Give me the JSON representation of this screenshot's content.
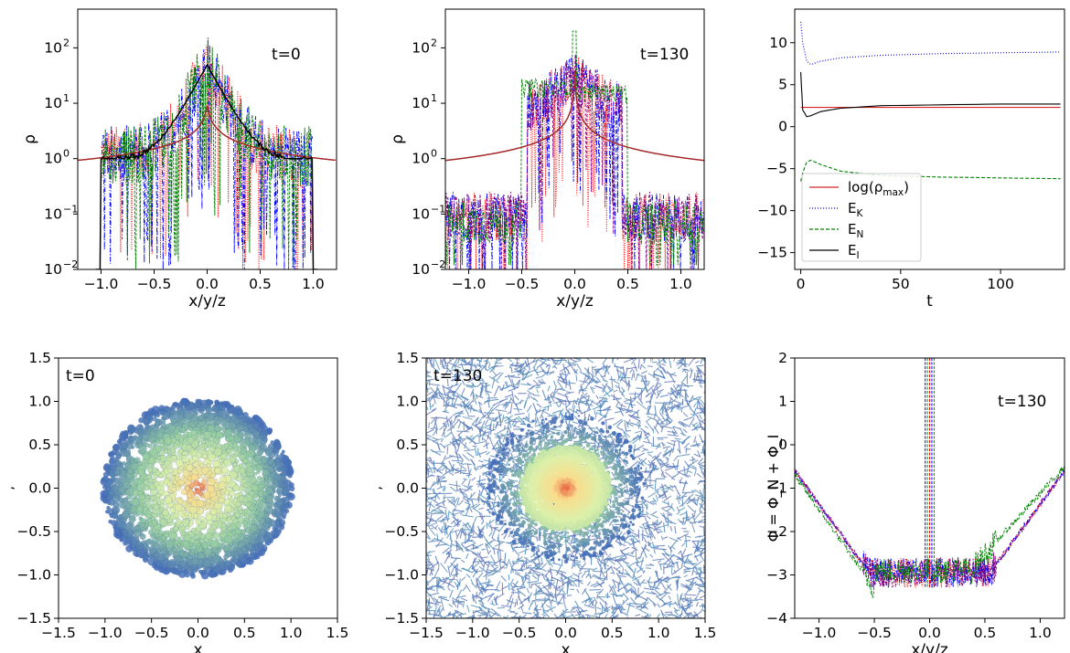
{
  "figure": {
    "panels": [
      {
        "id": "p1",
        "type": "line",
        "annotation": "t=0",
        "xlabel": "x/y/z",
        "ylabel": "ρ",
        "yscale": "log",
        "xlim": [
          -1.22,
          1.22
        ],
        "ylim": [
          0.01,
          500
        ],
        "xticks": [
          -1.0,
          -0.5,
          0.0,
          0.5,
          1.0
        ],
        "xticklabels": [
          "−1.0",
          "−0.5",
          "0.0",
          "0.5",
          "1.0"
        ],
        "yticks": [
          0.01,
          0.1,
          1,
          10,
          100
        ],
        "yticklabels": [
          "10",
          "10",
          "10",
          "10",
          "10"
        ],
        "ytickexp": [
          "−2",
          "−1",
          "0",
          "1",
          "2"
        ]
      },
      {
        "id": "p2",
        "type": "line",
        "annotation": "t=130",
        "xlabel": "x/y/z",
        "ylabel": "ρ",
        "yscale": "log",
        "xlim": [
          -1.22,
          1.22
        ],
        "ylim": [
          0.01,
          500
        ],
        "xticks": [
          -1.0,
          -0.5,
          0.0,
          0.5,
          1.0
        ],
        "xticklabels": [
          "−1.0",
          "−0.5",
          "0.0",
          "0.5",
          "1.0"
        ],
        "yticks": [
          0.01,
          0.1,
          1,
          10,
          100
        ],
        "yticklabels": [
          "10",
          "10",
          "10",
          "10",
          "10"
        ],
        "ytickexp": [
          "−2",
          "−1",
          "0",
          "1",
          "2"
        ]
      },
      {
        "id": "p3",
        "type": "line",
        "xlabel": "t",
        "ylabel": "",
        "xlim": [
          -3,
          132
        ],
        "ylim": [
          -17,
          14
        ],
        "xticks": [
          0,
          50,
          100
        ],
        "xticklabels": [
          "0",
          "50",
          "100"
        ],
        "yticks": [
          10,
          5,
          0,
          -5,
          -10,
          -15
        ],
        "yticklabels": [
          "10",
          "5",
          "0",
          "−5",
          "−10",
          "−15"
        ],
        "legend": {
          "position": "lower-left",
          "entries": [
            {
              "label": "log(ρ",
              "sub": "max",
              "suffix": ")",
              "color": "#d62728",
              "dash": ""
            },
            {
              "label": "E",
              "sub": "K",
              "suffix": "",
              "color": "#0000ff",
              "dash": "1,2"
            },
            {
              "label": "E",
              "sub": "N",
              "suffix": "",
              "color": "#008000",
              "dash": "4,2"
            },
            {
              "label": "E",
              "sub": "I",
              "suffix": "",
              "color": "#000000",
              "dash": ""
            }
          ]
        }
      },
      {
        "id": "p4",
        "type": "scatter",
        "annotation": "t=0",
        "xlabel": "x",
        "ylabel": "‚",
        "xlim": [
          -1.5,
          1.5
        ],
        "ylim": [
          -1.5,
          1.5
        ],
        "xticks": [
          -1.5,
          -1.0,
          -0.5,
          0.0,
          0.5,
          1.0,
          1.5
        ],
        "xticklabels": [
          "−1.5",
          "−1.0",
          "−0.5",
          "0.0",
          "0.5",
          "1.0",
          "1.5"
        ],
        "yticks": [
          1.5,
          1.0,
          0.5,
          0.0,
          -0.5,
          -1.0,
          -1.5
        ],
        "yticklabels": [
          "1.5",
          "1.0",
          "0.5",
          "0.0",
          "−0.5",
          "−1.0",
          "−1.5"
        ]
      },
      {
        "id": "p5",
        "type": "scatter",
        "annotation": "t=130",
        "xlabel": "x",
        "ylabel": "‚",
        "xlim": [
          -1.5,
          1.5
        ],
        "ylim": [
          -1.5,
          1.5
        ],
        "xticks": [
          -1.5,
          -1.0,
          -0.5,
          0.0,
          0.5,
          1.0,
          1.5
        ],
        "xticklabels": [
          "−1.5",
          "−1.0",
          "−0.5",
          "0.0",
          "0.5",
          "1.0",
          "1.5"
        ],
        "yticks": [
          1.5,
          1.0,
          0.5,
          0.0,
          -0.5,
          -1.0,
          -1.5
        ],
        "yticklabels": [
          "1.5",
          "1.0",
          "0.5",
          "0.0",
          "−0.5",
          "−1.0",
          "−1.5"
        ]
      },
      {
        "id": "p6",
        "type": "line",
        "annotation": "t=130",
        "xlabel": "x/y/z",
        "ylabel": "Φ = Φ_N + Φ_I",
        "xlim": [
          -1.22,
          1.22
        ],
        "ylim": [
          -4,
          2
        ],
        "xticks": [
          -1.0,
          -0.5,
          0.0,
          0.5,
          1.0
        ],
        "xticklabels": [
          "−1.0",
          "−0.5",
          "0.0",
          "0.5",
          "1.0"
        ],
        "yticks": [
          2,
          1,
          0,
          -1,
          -2,
          -3,
          -4
        ],
        "yticklabels": [
          "2",
          "1",
          "0",
          "−1",
          "−2",
          "−3",
          "−4"
        ]
      }
    ]
  },
  "chart_data": [
    {
      "type": "line",
      "title": "",
      "xlabel": "x/y/z",
      "ylabel": "ρ",
      "yscale": "log",
      "annotation": "t=0",
      "xlim": [
        -1.22,
        1.22
      ],
      "ylim": [
        0.01,
        500
      ],
      "series": [
        {
          "color": "#a52a2a",
          "x": [
            -1.2,
            -1.0,
            -0.8,
            -0.6,
            -0.4,
            -0.3,
            -0.2,
            -0.1,
            -0.05,
            0.0,
            0.05,
            0.1,
            0.2,
            0.3,
            0.4,
            0.6,
            0.8,
            1.0,
            1.2
          ],
          "y": [
            0.8,
            1.0,
            1.3,
            1.8,
            2.8,
            4.0,
            6.5,
            14,
            25,
            45,
            25,
            14,
            6.5,
            4.0,
            2.8,
            1.8,
            1.3,
            1.0,
            0.8
          ]
        },
        {
          "color": "#000000",
          "x": [
            -1.05,
            -1.0,
            -0.9,
            -0.7,
            -0.5,
            -0.3,
            -0.2,
            -0.1,
            0.0,
            0.1,
            0.2,
            0.3,
            0.5,
            0.7,
            0.9,
            1.0,
            1.05
          ],
          "y": [
            0.01,
            1.0,
            1.1,
            1.5,
            2.0,
            3.5,
            7,
            15,
            50,
            15,
            7,
            3.5,
            2.0,
            1.5,
            1.1,
            1.0,
            0.01
          ]
        }
      ]
    },
    {
      "type": "line",
      "title": "",
      "xlabel": "x/y/z",
      "ylabel": "ρ",
      "yscale": "log",
      "annotation": "t=130",
      "xlim": [
        -1.22,
        1.22
      ],
      "ylim": [
        0.01,
        500
      ],
      "series": [
        {
          "color": "#a52a2a",
          "x": [
            -1.2,
            -1.0,
            -0.8,
            -0.6,
            -0.4,
            -0.2,
            -0.1,
            -0.05,
            0.0,
            0.05,
            0.1,
            0.2,
            0.4,
            0.6,
            0.8,
            1.0,
            1.2
          ],
          "y": [
            0.85,
            1.0,
            1.3,
            1.8,
            3,
            6,
            12,
            25,
            70,
            25,
            12,
            6,
            3,
            1.8,
            1.3,
            1.0,
            0.85
          ]
        },
        {
          "color": "#008000",
          "x": [
            -1.2,
            -0.6,
            -0.5,
            -0.4,
            -0.2,
            -0.05,
            0.0,
            0.05,
            0.2,
            0.4,
            0.5,
            0.6,
            1.2
          ],
          "y": [
            0.05,
            0.1,
            3,
            20,
            30,
            40,
            200,
            40,
            30,
            20,
            3,
            0.1,
            0.05
          ]
        }
      ]
    },
    {
      "type": "line",
      "title": "",
      "xlabel": "t",
      "ylabel": "",
      "xlim": [
        -3,
        132
      ],
      "ylim": [
        -17,
        14
      ],
      "series": [
        {
          "name": "log(ρmax)",
          "color": "#d62728",
          "x": [
            0,
            130
          ],
          "y": [
            2.3,
            2.3
          ]
        },
        {
          "name": "EK",
          "color": "#0000ff",
          "x": [
            0,
            1,
            3,
            5,
            10,
            20,
            40,
            70,
            100,
            130
          ],
          "y": [
            12.5,
            10,
            7.8,
            7.4,
            7.8,
            8.2,
            8.5,
            8.7,
            8.8,
            8.9
          ]
        },
        {
          "name": "EN",
          "color": "#008000",
          "x": [
            0,
            1,
            3,
            5,
            10,
            20,
            40,
            70,
            100,
            130
          ],
          "y": [
            -6.5,
            -5.5,
            -4.2,
            -4.0,
            -4.5,
            -5.3,
            -5.8,
            -6.0,
            -6.1,
            -6.2
          ]
        },
        {
          "name": "EI",
          "color": "#000000",
          "x": [
            0,
            1,
            3,
            5,
            10,
            20,
            40,
            70,
            100,
            130
          ],
          "y": [
            6.5,
            2.0,
            1.2,
            1.3,
            1.8,
            2.2,
            2.5,
            2.6,
            2.7,
            2.7
          ]
        }
      ]
    },
    {
      "type": "scatter",
      "title": "",
      "xlabel": "x",
      "ylabel": "‚",
      "annotation": "t=0",
      "xlim": [
        -1.5,
        1.5
      ],
      "ylim": [
        -1.5,
        1.5
      ],
      "description": "particle distribution inside a sphere of radius ~1.0"
    },
    {
      "type": "scatter",
      "title": "",
      "xlabel": "x",
      "ylabel": "‚",
      "annotation": "t=130",
      "xlim": [
        -1.5,
        1.5
      ],
      "ylim": [
        -1.5,
        1.5
      ],
      "description": "dense core of radius ~0.45 with diffuse particles filling the box"
    },
    {
      "type": "line",
      "title": "",
      "xlabel": "x/y/z",
      "ylabel": "Φ = Φ_N + Φ_I",
      "annotation": "t=130",
      "xlim": [
        -1.22,
        1.22
      ],
      "ylim": [
        -4,
        2
      ],
      "series": [
        {
          "color": "#800080",
          "x": [
            -1.2,
            -1.0,
            -0.8,
            -0.6,
            -0.5,
            -0.3,
            -0.1,
            0.0,
            0.1,
            0.3,
            0.5,
            0.6,
            0.8,
            1.0,
            1.2
          ],
          "y": [
            -0.6,
            -0.9,
            -1.6,
            -2.3,
            -2.7,
            -2.9,
            -3.0,
            -3.0,
            -3.0,
            -2.9,
            -2.6,
            -2.3,
            -1.6,
            -0.9,
            -0.6
          ]
        },
        {
          "color": "#008000",
          "x": [
            -1.2,
            -1.0,
            -0.8,
            -0.6,
            -0.5,
            -0.4,
            -0.2,
            0.0,
            0.2,
            0.4,
            0.5,
            0.6,
            0.8,
            1.0,
            1.2
          ],
          "y": [
            -0.65,
            -1.0,
            -1.8,
            -2.8,
            -3.3,
            -2.8,
            -2.9,
            -3.0,
            -2.9,
            -2.8,
            -2.2,
            -1.8,
            -1.4,
            -0.9,
            -0.55
          ]
        }
      ]
    }
  ]
}
